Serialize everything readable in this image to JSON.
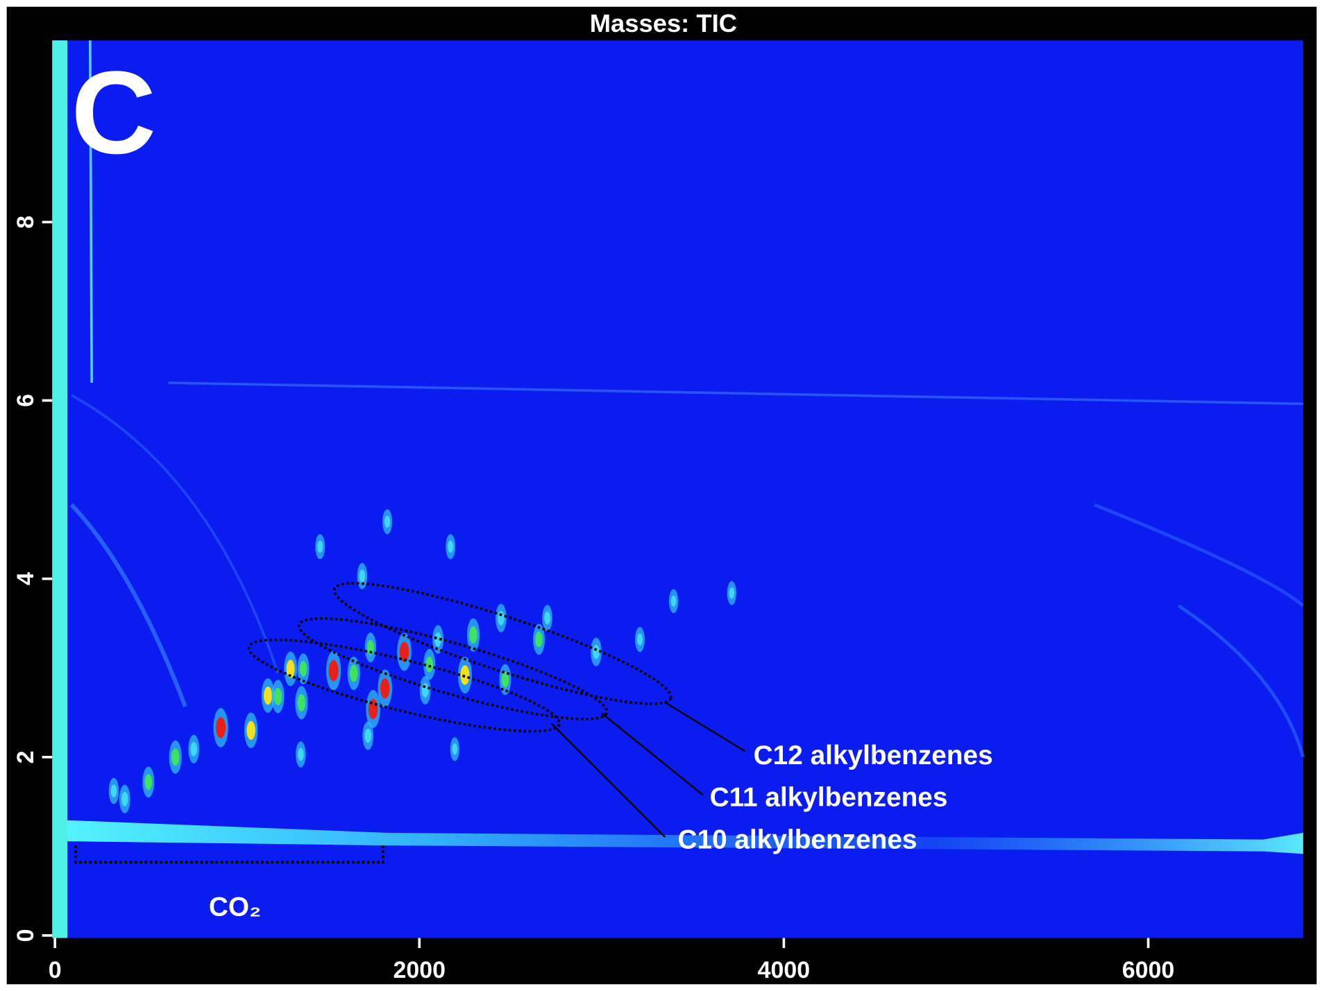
{
  "chart_data": {
    "type": "heatmap",
    "title": "Masses: TIC",
    "panel_label": "C",
    "annotations": [
      "C12 alkylbenzenes",
      "C11 alkylbenzenes",
      "C10 alkylbenzenes",
      "CO₂"
    ],
    "xlim": [
      -15,
      6850
    ],
    "ylim": [
      0,
      10
    ],
    "xticks": [
      0,
      2000,
      4000,
      6000
    ],
    "yticks": [
      0,
      2,
      4,
      6,
      8
    ],
    "background_color": "#0a1cf0",
    "peaks": {
      "x": [
        910,
        1076,
        1169,
        1224,
        1293,
        1353,
        1529,
        1640,
        1746,
        1811,
        1917,
        2055,
        2250,
        2296,
        2471,
        2656,
        661,
        513,
        383,
        323,
        762,
        1349,
        1718,
        2970,
        2448,
        2102,
        1686,
        1824,
        1455,
        2171,
        1363,
        1732,
        2032,
        2702,
        3395,
        3714,
        3210,
        2194
      ],
      "y": [
        2.33,
        2.3,
        2.69,
        2.68,
        2.99,
        2.61,
        2.97,
        2.94,
        2.54,
        2.77,
        3.18,
        3.04,
        2.92,
        3.37,
        2.87,
        3.32,
        2.0,
        1.72,
        1.53,
        1.62,
        2.09,
        2.03,
        2.24,
        3.18,
        3.56,
        3.32,
        4.03,
        4.64,
        4.36,
        4.36,
        2.99,
        3.23,
        2.75,
        3.56,
        3.75,
        3.84,
        3.32,
        2.09
      ],
      "intensity": [
        0.95,
        0.8,
        0.75,
        0.7,
        0.75,
        0.7,
        0.95,
        0.7,
        0.9,
        0.9,
        0.9,
        0.6,
        0.85,
        0.7,
        0.6,
        0.6,
        0.7,
        0.6,
        0.5,
        0.4,
        0.5,
        0.4,
        0.5,
        0.5,
        0.5,
        0.5,
        0.4,
        0.35,
        0.35,
        0.35,
        0.6,
        0.55,
        0.5,
        0.4,
        0.3,
        0.3,
        0.35,
        0.3
      ]
    }
  }
}
